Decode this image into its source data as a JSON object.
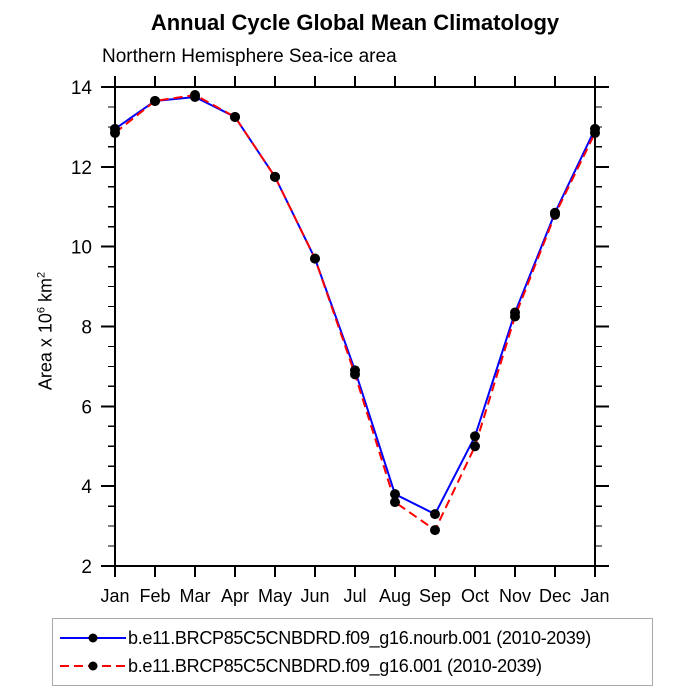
{
  "chart_data": {
    "type": "line",
    "title": "Annual Cycle Global Mean Climatology",
    "subtitle": "Northern Hemisphere Sea-ice area",
    "ylabel": "Area x 10⁶ km²",
    "ylabel_parts": {
      "text": "Area x 10",
      "exponent": "6",
      "unit": " km",
      "unit_exponent": "2"
    },
    "categories": [
      "Jan",
      "Feb",
      "Mar",
      "Apr",
      "May",
      "Jun",
      "Jul",
      "Aug",
      "Sep",
      "Oct",
      "Nov",
      "Dec",
      "Jan"
    ],
    "ylim": [
      2,
      14
    ],
    "ytick_major": [
      2,
      4,
      6,
      8,
      10,
      12,
      14
    ],
    "ytick_minor_step": 0.5,
    "grid": false,
    "legend_position": "bottom",
    "series": [
      {
        "name": "b.e11.BRCP85C5CNBDRD.f09_g16.nourb.001 (2010-2039)",
        "color": "#0000ff",
        "line_style": "solid",
        "marker": "filled-circle",
        "marker_color": "#000000",
        "values": [
          12.95,
          13.65,
          13.75,
          13.25,
          11.75,
          9.7,
          6.9,
          3.8,
          3.3,
          5.25,
          8.35,
          10.85,
          12.95
        ]
      },
      {
        "name": "b.e11.BRCP85C5CNBDRD.f09_g16.001 (2010-2039)",
        "color": "#ff0000",
        "line_style": "dashed",
        "marker": "filled-circle",
        "marker_color": "#000000",
        "values": [
          12.85,
          13.65,
          13.8,
          13.25,
          11.75,
          9.7,
          6.8,
          3.6,
          2.9,
          5.0,
          8.25,
          10.8,
          12.85
        ]
      }
    ]
  },
  "colors": {
    "axis": "#000000",
    "text": "#000000",
    "background": "#ffffff",
    "legend_border": "#a9a9a9"
  }
}
